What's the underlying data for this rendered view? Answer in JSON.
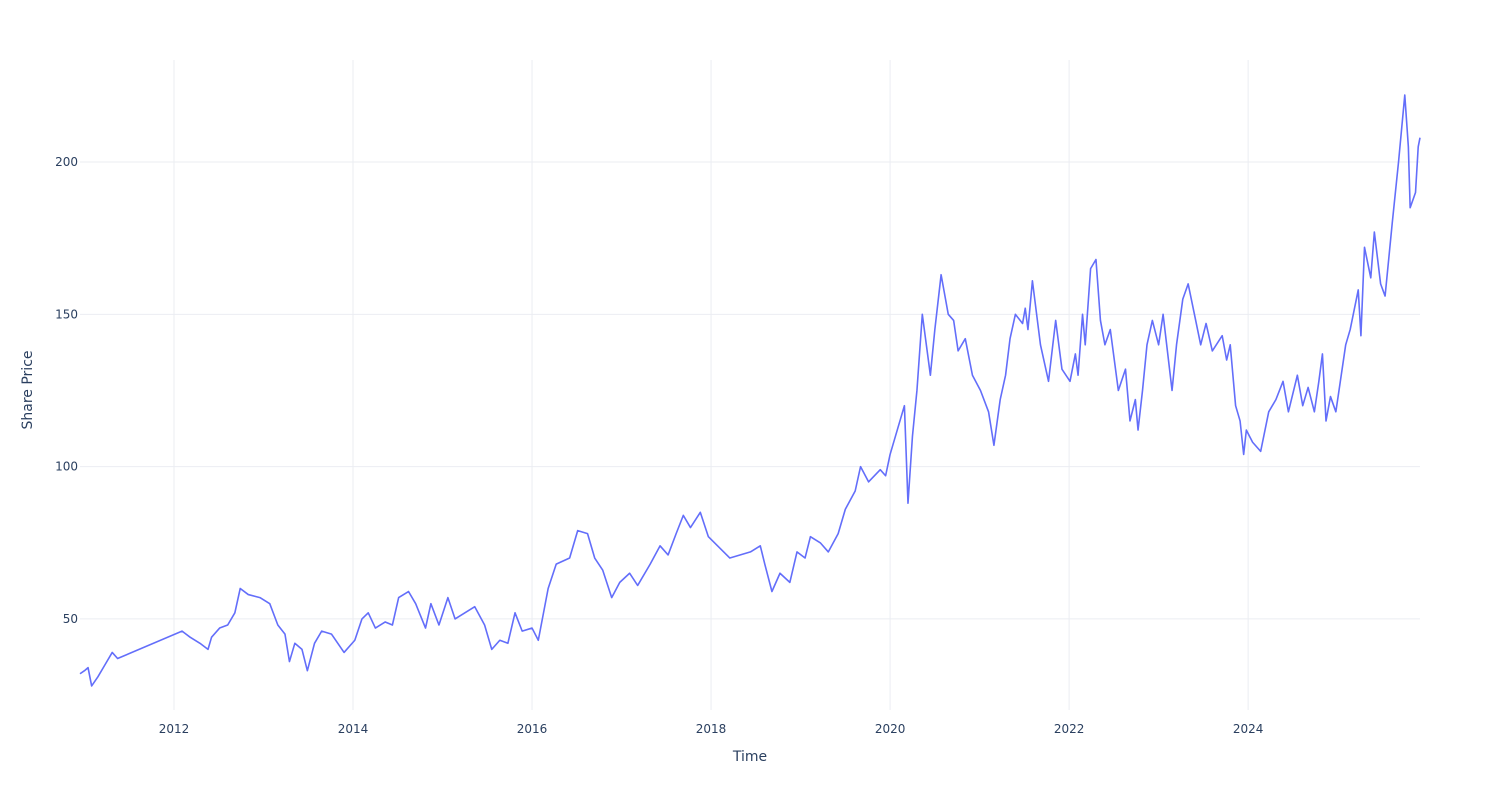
{
  "chart_data": {
    "type": "line",
    "x_label": "Time",
    "y_label": "Share Price",
    "color": "#636efa",
    "grid": true,
    "xlim": [
      2010.95,
      2025.92
    ],
    "xticks": [
      2012,
      2014,
      2016,
      2018,
      2020,
      2022,
      2024
    ],
    "ylim": [
      20.1,
      233.5
    ],
    "yticks": [
      50,
      100,
      150,
      200
    ],
    "x": [
      2010.95,
      2011.0,
      2011.04,
      2011.08,
      2011.15,
      2011.23,
      2011.31,
      2011.37,
      2012.09,
      2012.18,
      2012.29,
      2012.38,
      2012.42,
      2012.51,
      2012.6,
      2012.68,
      2012.74,
      2012.83,
      2012.96,
      2013.07,
      2013.16,
      2013.24,
      2013.29,
      2013.35,
      2013.43,
      2013.49,
      2013.57,
      2013.65,
      2013.76,
      2013.9,
      2014.02,
      2014.1,
      2014.17,
      2014.25,
      2014.36,
      2014.44,
      2014.51,
      2014.62,
      2014.7,
      2014.81,
      2014.87,
      2014.96,
      2015.06,
      2015.14,
      2015.25,
      2015.36,
      2015.47,
      2015.55,
      2015.64,
      2015.73,
      2015.81,
      2015.89,
      2016.0,
      2016.07,
      2016.18,
      2016.27,
      2016.42,
      2016.51,
      2016.62,
      2016.7,
      2016.79,
      2016.89,
      2016.98,
      2017.09,
      2017.18,
      2017.32,
      2017.43,
      2017.52,
      2017.61,
      2017.69,
      2017.77,
      2017.88,
      2017.97,
      2018.21,
      2018.44,
      2018.55,
      2018.6,
      2018.68,
      2018.77,
      2018.88,
      2018.96,
      2019.05,
      2019.11,
      2019.22,
      2019.31,
      2019.42,
      2019.5,
      2019.61,
      2019.67,
      2019.76,
      2019.89,
      2019.95,
      2020.0,
      2020.08,
      2020.16,
      2020.2,
      2020.25,
      2020.3,
      2020.36,
      2020.45,
      2020.5,
      2020.57,
      2020.65,
      2020.71,
      2020.76,
      2020.84,
      2020.92,
      2021.01,
      2021.1,
      2021.16,
      2021.23,
      2021.29,
      2021.34,
      2021.4,
      2021.48,
      2021.51,
      2021.54,
      2021.59,
      2021.68,
      2021.77,
      2021.85,
      2021.92,
      2022.01,
      2022.07,
      2022.1,
      2022.15,
      2022.18,
      2022.24,
      2022.3,
      2022.35,
      2022.4,
      2022.46,
      2022.55,
      2022.63,
      2022.68,
      2022.74,
      2022.77,
      2022.82,
      2022.87,
      2022.93,
      2023.0,
      2023.05,
      2023.15,
      2023.2,
      2023.27,
      2023.33,
      2023.4,
      2023.47,
      2023.53,
      2023.6,
      2023.71,
      2023.76,
      2023.8,
      2023.86,
      2023.91,
      2023.95,
      2023.98,
      2024.05,
      2024.14,
      2024.23,
      2024.31,
      2024.39,
      2024.45,
      2024.55,
      2024.61,
      2024.67,
      2024.74,
      2024.79,
      2024.83,
      2024.87,
      2024.92,
      2024.98,
      2025.03,
      2025.09,
      2025.14,
      2025.23,
      2025.26,
      2025.3,
      2025.37,
      2025.41,
      2025.48,
      2025.53,
      2025.61,
      2025.68,
      2025.75,
      2025.79,
      2025.81,
      2025.87,
      2025.9,
      2025.92
    ],
    "values": [
      32,
      33,
      34,
      28,
      31,
      35,
      39,
      37,
      46,
      44,
      42,
      40,
      44,
      47,
      48,
      52,
      60,
      58,
      57,
      55,
      48,
      45,
      36,
      42,
      40,
      33,
      42,
      46,
      45,
      39,
      43,
      50,
      52,
      47,
      49,
      48,
      57,
      59,
      55,
      47,
      55,
      48,
      57,
      50,
      52,
      54,
      48,
      40,
      43,
      42,
      52,
      46,
      47,
      43,
      60,
      68,
      70,
      79,
      78,
      70,
      66,
      57,
      62,
      65,
      61,
      68,
      74,
      71,
      78,
      84,
      80,
      85,
      77,
      70,
      72,
      74,
      68,
      59,
      65,
      62,
      72,
      70,
      77,
      75,
      72,
      78,
      86,
      92,
      100,
      95,
      99,
      97,
      104,
      112,
      120,
      88,
      110,
      125,
      150,
      130,
      145,
      163,
      150,
      148,
      138,
      142,
      130,
      125,
      118,
      107,
      122,
      130,
      142,
      150,
      147,
      152,
      145,
      161,
      140,
      128,
      148,
      132,
      128,
      137,
      130,
      150,
      140,
      165,
      168,
      148,
      140,
      145,
      125,
      132,
      115,
      122,
      112,
      125,
      140,
      148,
      140,
      150,
      125,
      140,
      155,
      160,
      150,
      140,
      147,
      138,
      143,
      135,
      140,
      120,
      115,
      104,
      112,
      108,
      105,
      118,
      122,
      128,
      118,
      130,
      120,
      126,
      118,
      128,
      137,
      115,
      123,
      118,
      128,
      140,
      145,
      158,
      143,
      172,
      162,
      177,
      160,
      156,
      180,
      200,
      222,
      205,
      185,
      190,
      205,
      208
    ]
  }
}
